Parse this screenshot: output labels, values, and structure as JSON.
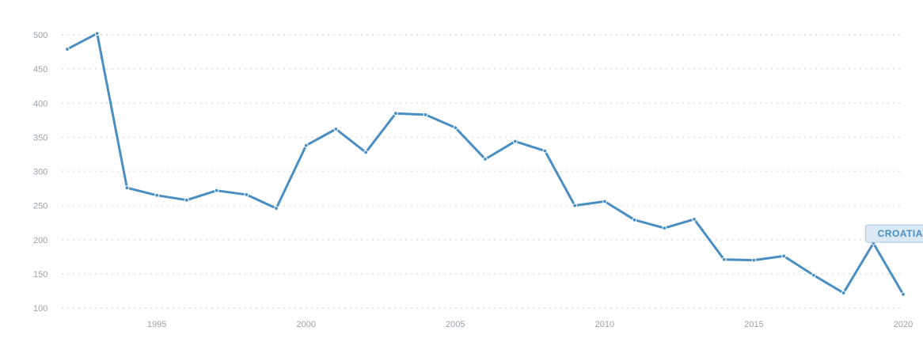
{
  "chart_data": {
    "type": "line",
    "title": "",
    "xlabel": "",
    "ylabel": "",
    "xlim": [
      1992,
      2020
    ],
    "ylim": [
      100,
      500
    ],
    "grid": true,
    "y_ticks": [
      100,
      150,
      200,
      250,
      300,
      350,
      400,
      450,
      500
    ],
    "x_ticks": [
      1995,
      2000,
      2005,
      2010,
      2015,
      2020
    ],
    "x": [
      1992,
      1993,
      1994,
      1995,
      1996,
      1997,
      1998,
      1999,
      2000,
      2001,
      2002,
      2003,
      2004,
      2005,
      2006,
      2007,
      2008,
      2009,
      2010,
      2011,
      2012,
      2013,
      2014,
      2015,
      2016,
      2017,
      2018,
      2019,
      2020
    ],
    "series": [
      {
        "name": "CROATIA",
        "color": "#4a8ec2",
        "values": [
          479,
          502,
          276,
          265,
          258,
          272,
          266,
          246,
          338,
          362,
          328,
          385,
          383,
          364,
          318,
          344,
          330,
          250,
          256,
          229,
          217,
          230,
          171,
          170,
          176,
          148,
          122,
          195,
          120
        ]
      }
    ]
  }
}
